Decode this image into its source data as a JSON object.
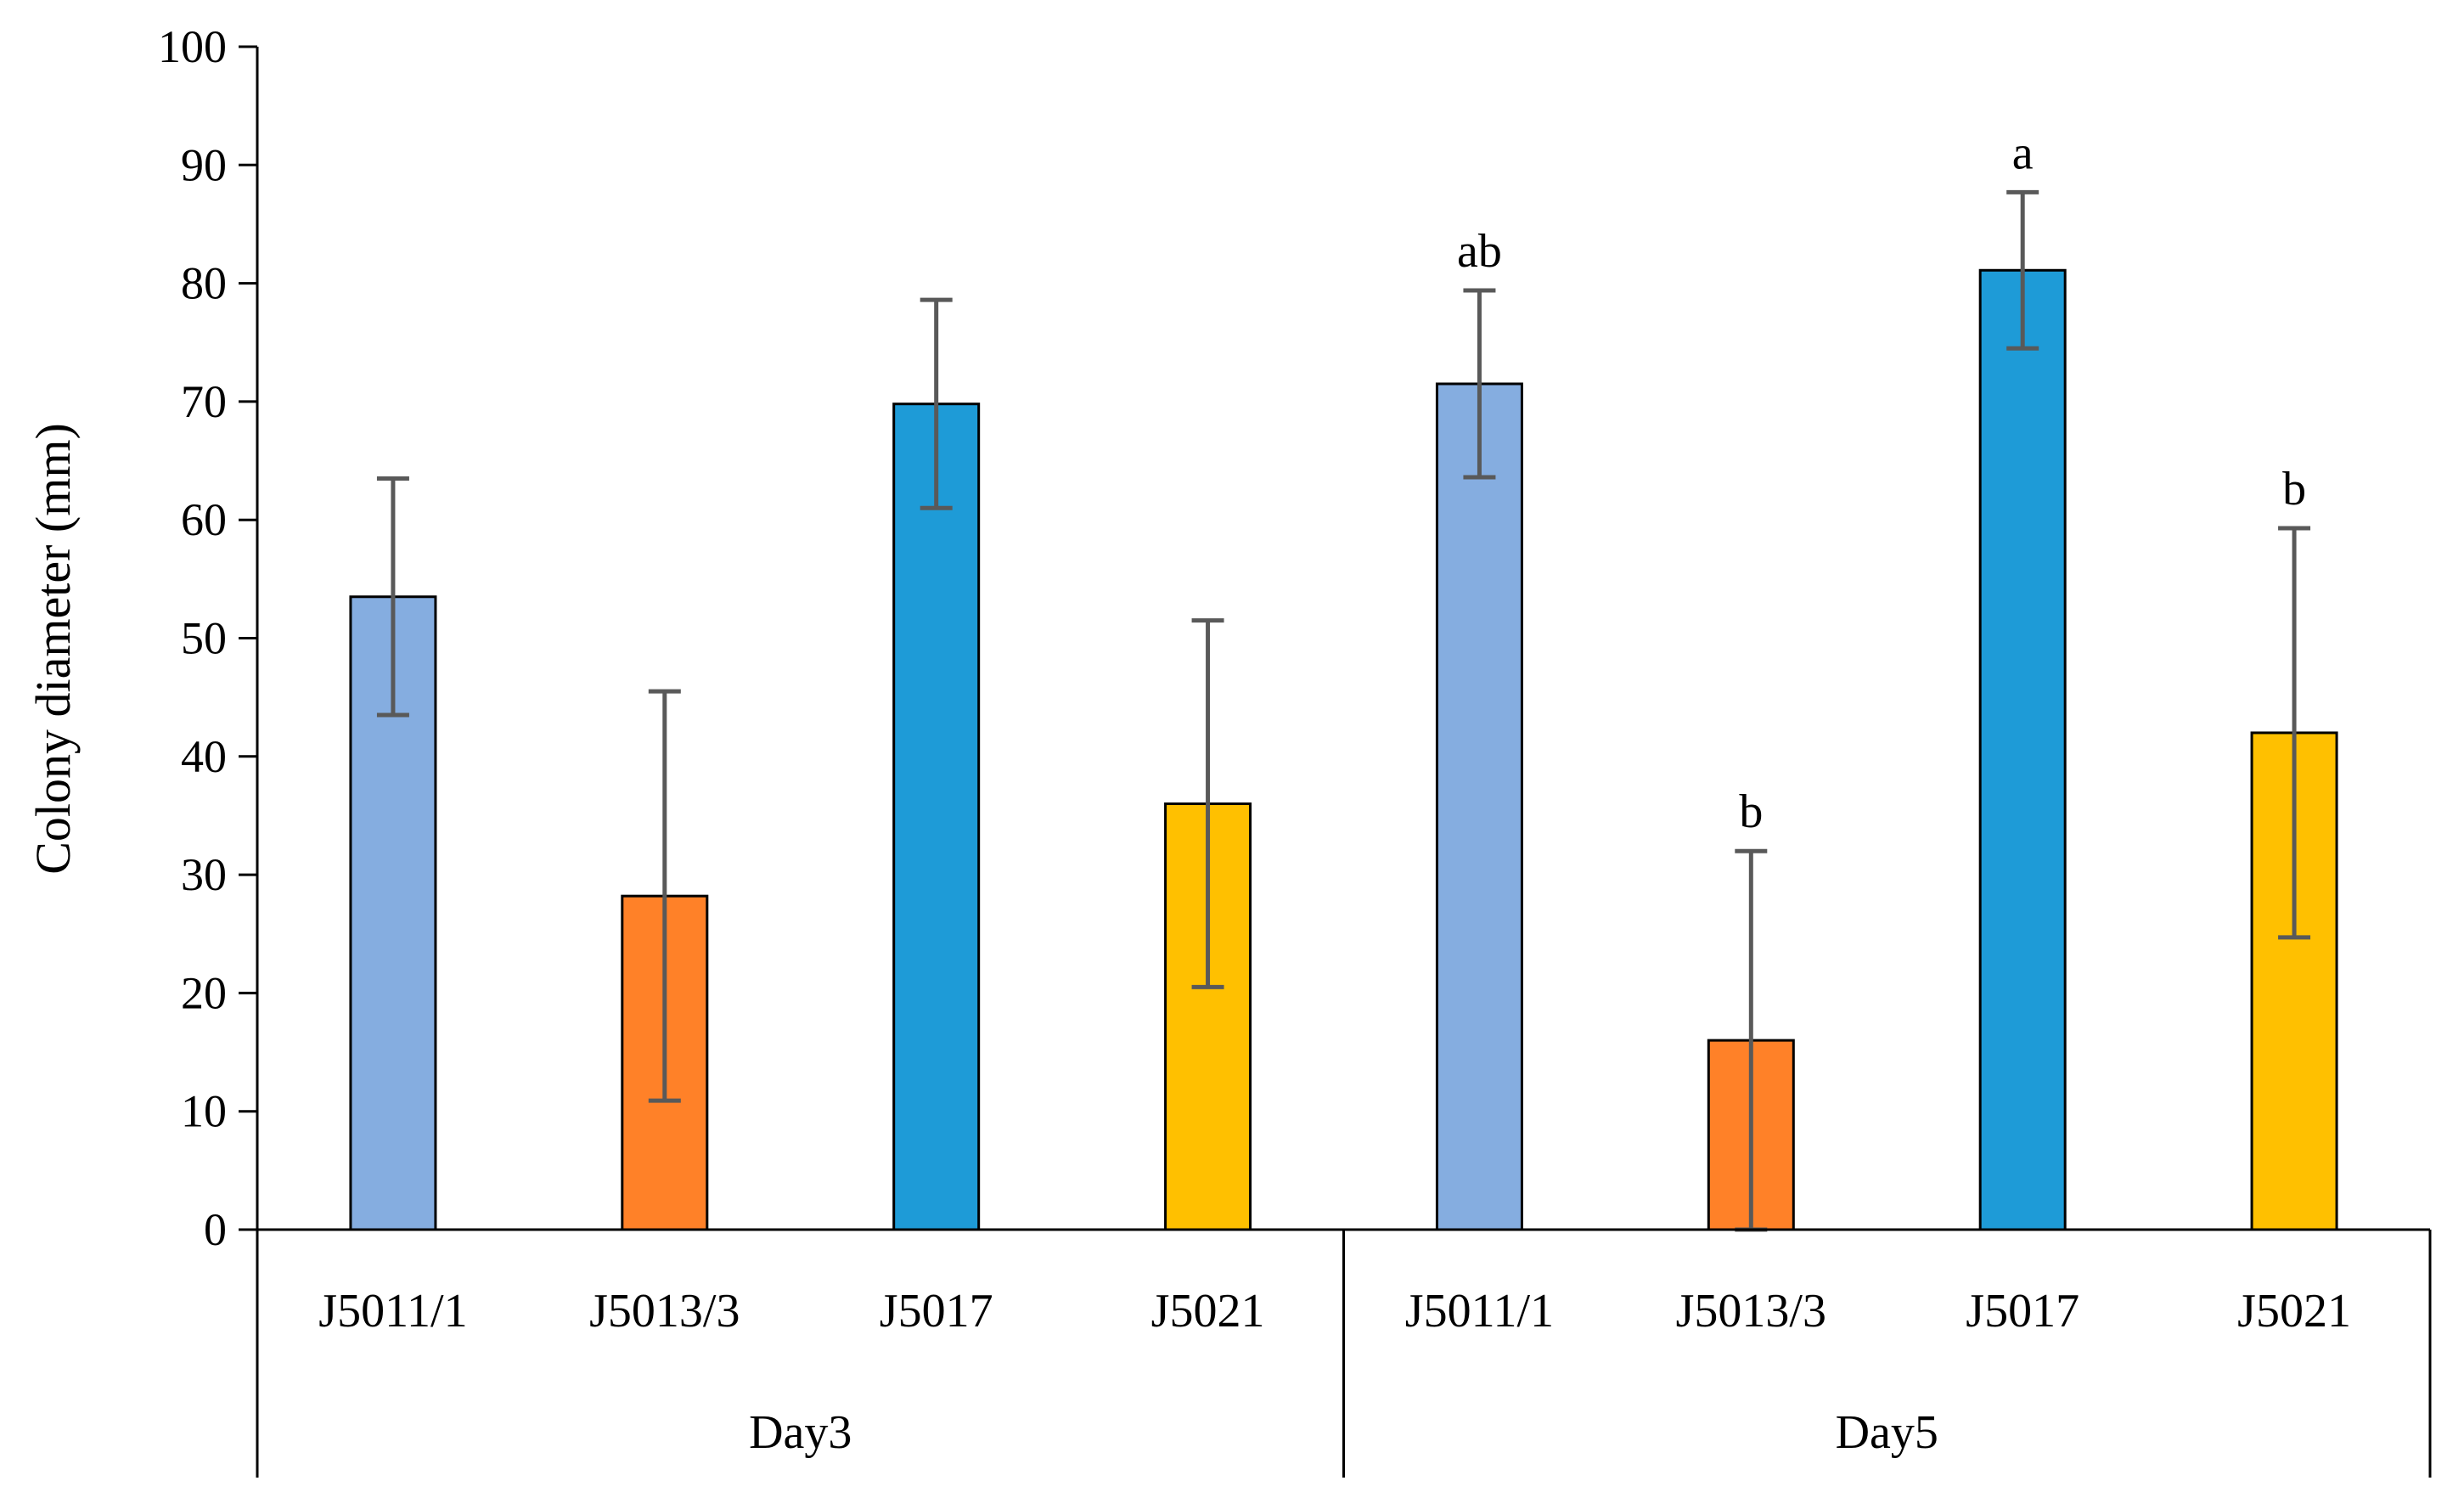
{
  "chart_data": {
    "type": "bar",
    "title": "",
    "xlabel": "",
    "ylabel": "Colony diameter (mm)",
    "ylim": [
      0,
      100
    ],
    "yticks": [
      0,
      10,
      20,
      30,
      40,
      50,
      60,
      70,
      80,
      90,
      100
    ],
    "grid": false,
    "legend": "none",
    "groups": [
      {
        "name": "Day3",
        "bars": [
          {
            "category": "J5011/1",
            "value": 53.5,
            "error": 10.0,
            "color": "#85ADE0",
            "label": ""
          },
          {
            "category": "J5013/3",
            "value": 28.2,
            "error": 17.3,
            "color": "#FF8128",
            "label": ""
          },
          {
            "category": "J5017",
            "value": 69.8,
            "error": 8.8,
            "color": "#1E9BD7",
            "label": ""
          },
          {
            "category": "J5021",
            "value": 36.0,
            "error": 15.5,
            "color": "#FFC000",
            "label": ""
          }
        ]
      },
      {
        "name": "Day5",
        "bars": [
          {
            "category": "J5011/1",
            "value": 71.5,
            "error": 7.9,
            "color": "#85ADE0",
            "label": "ab"
          },
          {
            "category": "J5013/3",
            "value": 16.0,
            "error": 16.0,
            "color": "#FF8128",
            "label": "b"
          },
          {
            "category": "J5017",
            "value": 81.1,
            "error": 6.6,
            "color": "#1E9BD7",
            "label": "a"
          },
          {
            "category": "J5021",
            "value": 42.0,
            "error": 17.3,
            "color": "#FFC000",
            "label": "b"
          }
        ]
      }
    ]
  }
}
